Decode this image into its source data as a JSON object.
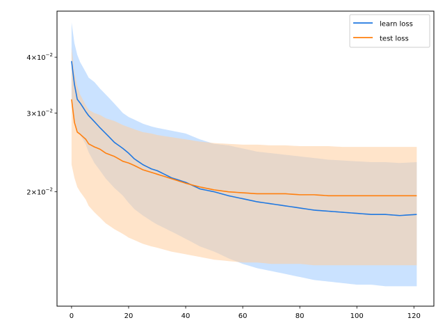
{
  "chart_data": {
    "type": "line",
    "title": "",
    "xlabel": "",
    "ylabel": "",
    "yscale": "log",
    "xlim": [
      -5.1,
      127
    ],
    "ylim": [
      0.0111,
      0.0507
    ],
    "grid": false,
    "legend_position": "top-right",
    "x_ticks": [
      {
        "value": 0,
        "label": "0"
      },
      {
        "value": 20,
        "label": "20"
      },
      {
        "value": 40,
        "label": "40"
      },
      {
        "value": 60,
        "label": "60"
      },
      {
        "value": 80,
        "label": "80"
      },
      {
        "value": 100,
        "label": "100"
      },
      {
        "value": 120,
        "label": "120"
      }
    ],
    "y_ticks": [
      {
        "value": 0.02,
        "base": "2",
        "exp": "−2"
      },
      {
        "value": 0.03,
        "base": "3",
        "exp": "−2"
      },
      {
        "value": 0.04,
        "base": "4",
        "exp": "−2"
      }
    ],
    "series": [
      {
        "name": "learn loss",
        "color": "#1f77e0",
        "band_color": "#9ecbff",
        "keypoints_x": [
          0,
          1,
          2,
          3,
          5,
          6,
          8,
          10,
          12,
          15,
          18,
          20,
          22,
          25,
          28,
          30,
          35,
          40,
          45,
          50,
          55,
          60,
          65,
          70,
          75,
          80,
          85,
          90,
          95,
          100,
          105,
          110,
          115,
          121
        ],
        "keypoints_y": [
          0.0392,
          0.0348,
          0.0322,
          0.0316,
          0.0302,
          0.0296,
          0.0287,
          0.0278,
          0.027,
          0.0258,
          0.025,
          0.0244,
          0.0237,
          0.023,
          0.0225,
          0.0223,
          0.0215,
          0.021,
          0.0203,
          0.02,
          0.0196,
          0.0193,
          0.019,
          0.0188,
          0.0186,
          0.0184,
          0.0182,
          0.0181,
          0.018,
          0.0179,
          0.0178,
          0.0178,
          0.0177,
          0.0178
        ],
        "band_upper_keypoints": [
          0.0478,
          0.043,
          0.0405,
          0.039,
          0.037,
          0.036,
          0.0352,
          0.034,
          0.033,
          0.0315,
          0.03,
          0.0294,
          0.029,
          0.0284,
          0.028,
          0.0278,
          0.0274,
          0.027,
          0.0262,
          0.0256,
          0.0254,
          0.025,
          0.0246,
          0.0244,
          0.0242,
          0.024,
          0.0238,
          0.0236,
          0.0235,
          0.0234,
          0.0233,
          0.0233,
          0.0232,
          0.0233
        ],
        "band_lower_keypoints": [
          0.0325,
          0.029,
          0.0275,
          0.0268,
          0.0255,
          0.0245,
          0.0232,
          0.0223,
          0.0214,
          0.0204,
          0.0196,
          0.0189,
          0.0183,
          0.0177,
          0.0172,
          0.0169,
          0.0163,
          0.0157,
          0.0151,
          0.0147,
          0.0142,
          0.0138,
          0.0135,
          0.0133,
          0.0131,
          0.0129,
          0.0127,
          0.0126,
          0.0125,
          0.0124,
          0.0124,
          0.0123,
          0.0123,
          0.0123
        ]
      },
      {
        "name": "test loss",
        "color": "#ff7f0e",
        "band_color": "#ffcd9e",
        "keypoints_x": [
          0,
          1,
          2,
          3,
          5,
          6,
          8,
          10,
          12,
          15,
          18,
          20,
          22,
          25,
          28,
          30,
          35,
          40,
          45,
          50,
          55,
          60,
          65,
          70,
          75,
          80,
          85,
          90,
          95,
          100,
          105,
          110,
          115,
          121
        ],
        "keypoints_y": [
          0.0322,
          0.0286,
          0.0272,
          0.0269,
          0.0262,
          0.0256,
          0.0252,
          0.0249,
          0.0244,
          0.024,
          0.0234,
          0.0232,
          0.0229,
          0.0224,
          0.0221,
          0.0219,
          0.0214,
          0.0209,
          0.0205,
          0.0202,
          0.02,
          0.0199,
          0.0198,
          0.0198,
          0.0198,
          0.0197,
          0.0197,
          0.0196,
          0.0196,
          0.0196,
          0.0196,
          0.0196,
          0.0196,
          0.0196
        ],
        "band_upper_keypoints": [
          0.042,
          0.037,
          0.0345,
          0.033,
          0.0312,
          0.0305,
          0.03,
          0.0297,
          0.0292,
          0.0288,
          0.0282,
          0.0279,
          0.0276,
          0.0272,
          0.027,
          0.0268,
          0.0265,
          0.0262,
          0.0259,
          0.0257,
          0.0256,
          0.0255,
          0.0255,
          0.0254,
          0.0254,
          0.0253,
          0.0253,
          0.0253,
          0.0252,
          0.0252,
          0.0252,
          0.0252,
          0.0252,
          0.0252
        ],
        "band_lower_keypoints": [
          0.023,
          0.0215,
          0.0205,
          0.02,
          0.0192,
          0.0186,
          0.018,
          0.0175,
          0.017,
          0.0165,
          0.0161,
          0.0158,
          0.0156,
          0.0153,
          0.0151,
          0.015,
          0.0147,
          0.0145,
          0.0143,
          0.0141,
          0.014,
          0.0139,
          0.0139,
          0.0138,
          0.0138,
          0.0138,
          0.0137,
          0.0137,
          0.0137,
          0.0137,
          0.0137,
          0.0137,
          0.0137,
          0.0137
        ]
      }
    ]
  }
}
